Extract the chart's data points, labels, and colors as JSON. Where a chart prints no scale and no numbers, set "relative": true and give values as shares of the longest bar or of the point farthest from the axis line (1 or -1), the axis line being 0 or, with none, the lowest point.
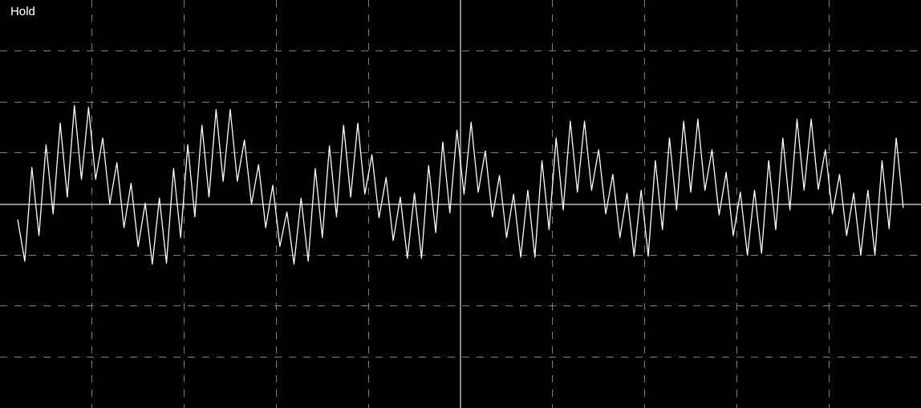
{
  "chart_data": {
    "type": "line",
    "relative": true,
    "grid": true,
    "marker": "none",
    "line_style": "solid",
    "annotations": [
      "Hold"
    ],
    "categories": [
      null,
      null,
      null,
      null,
      null,
      null,
      null,
      null,
      null,
      null,
      null,
      null,
      null,
      null,
      null,
      null,
      null,
      null,
      null,
      null,
      null,
      null,
      null,
      null,
      null,
      null,
      null,
      null,
      null,
      null,
      null,
      null,
      null,
      null,
      null,
      null,
      null,
      null,
      null,
      null,
      null,
      null,
      null,
      null,
      null,
      null,
      null,
      null,
      null,
      null,
      null,
      null,
      null,
      null,
      null,
      null,
      null,
      null,
      null,
      null,
      null,
      null,
      null,
      null,
      null,
      null,
      null,
      null,
      null,
      null,
      null,
      null,
      null,
      null,
      null,
      null,
      null,
      null,
      null,
      null,
      null,
      null,
      null,
      null,
      null,
      null,
      null,
      null,
      null,
      null,
      null,
      null,
      null,
      null,
      null,
      null,
      null,
      null,
      null,
      null,
      null,
      null,
      null,
      null,
      null,
      null,
      null,
      null,
      null,
      null,
      null,
      null,
      null,
      null,
      null,
      null,
      null,
      null,
      null,
      null,
      null,
      null,
      null,
      null,
      null,
      null
    ],
    "series": [
      {
        "color": "#ffffff",
        "values": [
          -0.16,
          -0.58,
          0.37,
          -0.32,
          0.6,
          -0.1,
          0.82,
          0.07,
          1.0,
          0.25,
          0.98,
          0.25,
          0.67,
          0.0,
          0.42,
          -0.24,
          0.21,
          -0.43,
          0.01,
          -0.61,
          0.06,
          -0.6,
          0.36,
          -0.34,
          0.6,
          -0.13,
          0.8,
          0.07,
          0.96,
          0.23,
          0.96,
          0.23,
          0.65,
          0.0,
          0.4,
          -0.24,
          0.19,
          -0.43,
          -0.08,
          -0.61,
          0.06,
          -0.58,
          0.36,
          -0.34,
          0.59,
          -0.13,
          0.8,
          0.07,
          0.82,
          0.1,
          0.5,
          -0.14,
          0.27,
          -0.37,
          0.07,
          -0.55,
          0.11,
          -0.55,
          0.39,
          -0.29,
          0.63,
          -0.09,
          0.75,
          0.1,
          0.83,
          0.12,
          0.54,
          -0.13,
          0.29,
          -0.34,
          0.1,
          -0.54,
          0.14,
          -0.54,
          0.44,
          -0.26,
          0.67,
          -0.06,
          0.84,
          0.12,
          0.84,
          0.14,
          0.55,
          -0.1,
          0.3,
          -0.34,
          0.11,
          -0.53,
          0.14,
          -0.53,
          0.44,
          -0.26,
          0.67,
          -0.06,
          0.84,
          0.12,
          0.86,
          0.14,
          0.55,
          -0.11,
          0.32,
          -0.32,
          0.12,
          -0.52,
          0.14,
          -0.5,
          0.44,
          -0.26,
          0.67,
          -0.06,
          0.86,
          0.14,
          0.86,
          0.15,
          0.55,
          -0.1,
          0.3,
          -0.32,
          0.11,
          -0.52,
          0.14,
          -0.52,
          0.44,
          -0.25,
          0.67,
          -0.04
        ]
      }
    ]
  }
}
